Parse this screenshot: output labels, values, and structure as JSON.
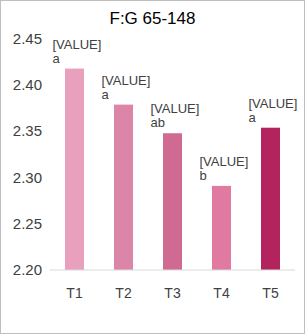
{
  "chart_data": {
    "type": "bar",
    "title": "F:G  65-148",
    "categories": [
      "T1",
      "T2",
      "T3",
      "T4",
      "T5"
    ],
    "values": [
      2.418,
      2.379,
      2.348,
      2.291,
      2.354
    ],
    "value_labels": [
      "[VALUE] a",
      "[VALUE] a",
      "[VALUE] ab",
      "[VALUE] b",
      "[VALUE] a"
    ],
    "data_labels": true,
    "colors": [
      "#e8a0bd",
      "#db86a8",
      "#cf6a93",
      "#e07aa0",
      "#b3245f"
    ],
    "ylim": [
      2.2,
      2.45
    ],
    "yticks": [
      {
        "value": 2.2,
        "label": "2.20"
      },
      2.25,
      {
        "value": 2.3,
        "label": "2.30"
      },
      2.35,
      {
        "value": 2.4,
        "label": "2.40"
      },
      2.45
    ],
    "grid": false
  }
}
